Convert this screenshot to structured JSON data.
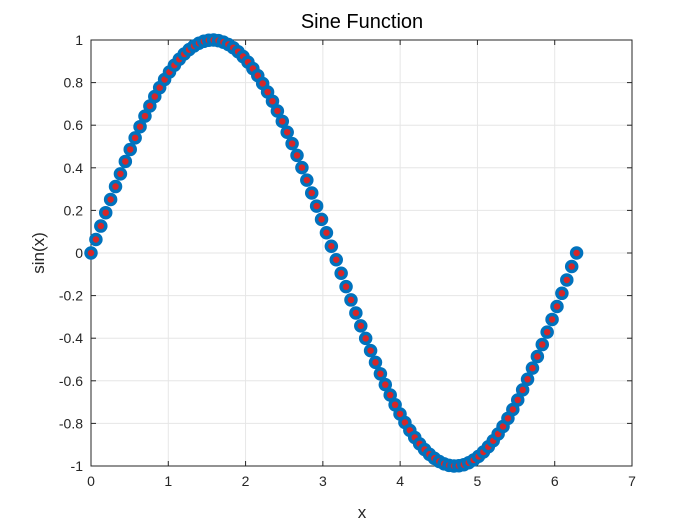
{
  "chart_data": {
    "type": "scatter",
    "title": "Sine Function",
    "xlabel": "x",
    "ylabel": "sin(x)",
    "xlim": [
      0,
      7
    ],
    "ylim": [
      -1,
      1
    ],
    "xticks": [
      0,
      1,
      2,
      3,
      4,
      5,
      6,
      7
    ],
    "xtick_labels": [
      "0",
      "1",
      "2",
      "3",
      "4",
      "5",
      "6",
      "7"
    ],
    "yticks": [
      -1,
      -0.8,
      -0.6,
      -0.4,
      -0.2,
      0,
      0.2,
      0.4,
      0.6,
      0.8,
      1
    ],
    "ytick_labels": [
      "-1",
      "-0.8",
      "-0.6",
      "-0.4",
      "-0.2",
      "0",
      "0.2",
      "0.4",
      "0.6",
      "0.8",
      "1"
    ],
    "grid": true,
    "x_range": [
      0,
      6.2832
    ],
    "point_count": 100,
    "series": [
      {
        "function": "sin",
        "marker": "circle",
        "marker_edge_color": "#0072BD",
        "marker_face_color": "#D62728"
      }
    ]
  }
}
